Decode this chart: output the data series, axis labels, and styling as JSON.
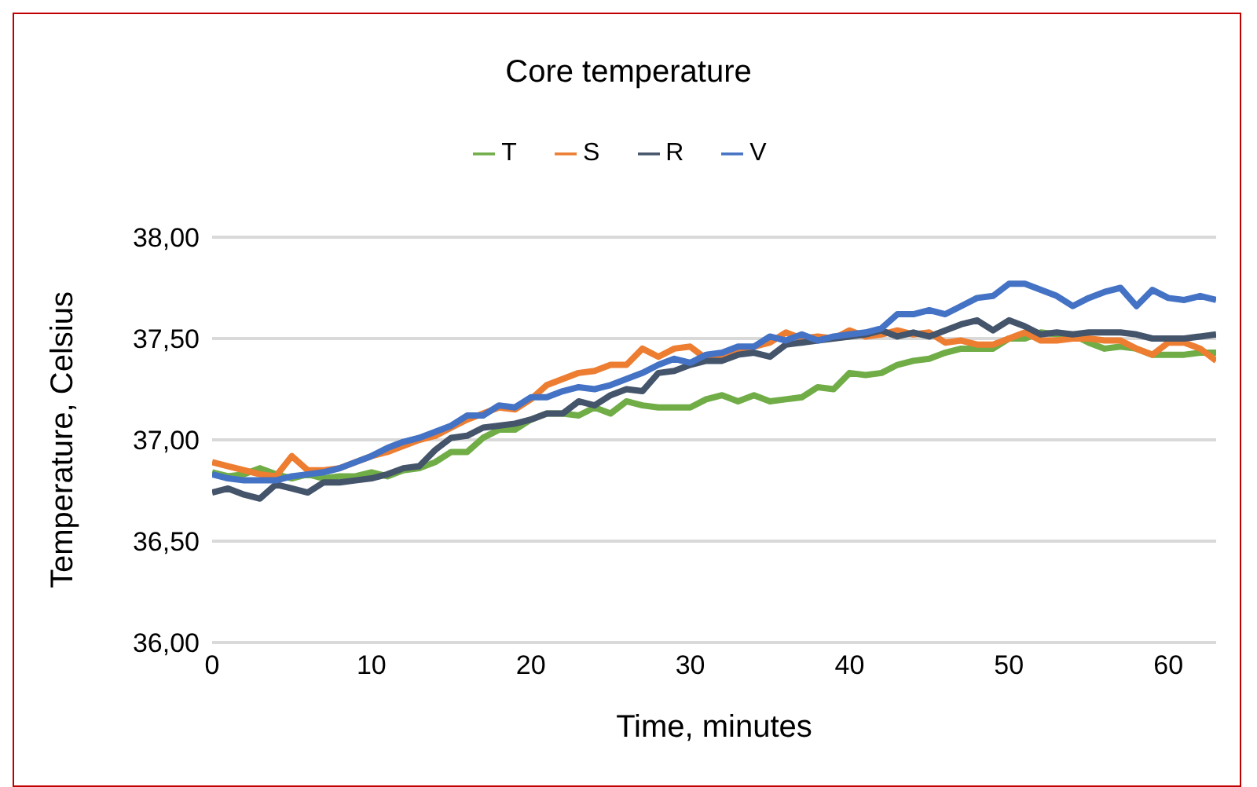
{
  "chart_data": {
    "type": "line",
    "title": "Core temperature",
    "xlabel": "Time, minutes",
    "ylabel": "Temperature, Celsius",
    "x": [
      0,
      1,
      2,
      3,
      4,
      5,
      6,
      7,
      8,
      9,
      10,
      11,
      12,
      13,
      14,
      15,
      16,
      17,
      18,
      19,
      20,
      21,
      22,
      23,
      24,
      25,
      26,
      27,
      28,
      29,
      30,
      31,
      32,
      33,
      34,
      35,
      36,
      37,
      38,
      39,
      40,
      41,
      42,
      43,
      44,
      45,
      46,
      47,
      48,
      49,
      50,
      51,
      52,
      53,
      54,
      55,
      56,
      57,
      58,
      59,
      60,
      61,
      62,
      63
    ],
    "series": [
      {
        "name": "T",
        "color": "#70ad47",
        "values": [
          36.84,
          36.82,
          36.83,
          36.86,
          36.83,
          36.81,
          36.83,
          36.81,
          36.82,
          36.82,
          36.84,
          36.82,
          36.85,
          36.86,
          36.89,
          36.94,
          36.94,
          37.01,
          37.05,
          37.05,
          37.1,
          37.13,
          37.13,
          37.12,
          37.16,
          37.13,
          37.19,
          37.17,
          37.16,
          37.16,
          37.16,
          37.2,
          37.22,
          37.19,
          37.22,
          37.19,
          37.2,
          37.21,
          37.26,
          37.25,
          37.33,
          37.32,
          37.33,
          37.37,
          37.39,
          37.4,
          37.43,
          37.45,
          37.45,
          37.45,
          37.5,
          37.5,
          37.53,
          37.52,
          37.52,
          37.48,
          37.45,
          37.46,
          37.45,
          37.42,
          37.42,
          37.42,
          37.43,
          37.43
        ]
      },
      {
        "name": "S",
        "color": "#ed7d31",
        "values": [
          36.89,
          36.87,
          36.85,
          36.83,
          36.82,
          36.92,
          36.85,
          36.85,
          36.86,
          36.89,
          36.92,
          36.94,
          36.97,
          37.0,
          37.02,
          37.06,
          37.1,
          37.13,
          37.16,
          37.15,
          37.2,
          37.27,
          37.3,
          37.33,
          37.34,
          37.37,
          37.37,
          37.45,
          37.41,
          37.45,
          37.46,
          37.4,
          37.42,
          37.44,
          37.46,
          37.48,
          37.53,
          37.5,
          37.51,
          37.5,
          37.54,
          37.51,
          37.52,
          37.54,
          37.52,
          37.53,
          37.48,
          37.49,
          37.47,
          37.47,
          37.5,
          37.53,
          37.49,
          37.49,
          37.5,
          37.5,
          37.49,
          37.49,
          37.45,
          37.42,
          37.48,
          37.48,
          37.45,
          37.39
        ]
      },
      {
        "name": "R",
        "color": "#44546a",
        "values": [
          36.74,
          36.76,
          36.73,
          36.71,
          36.78,
          36.76,
          36.74,
          36.79,
          36.79,
          36.8,
          36.81,
          36.83,
          36.86,
          36.87,
          36.95,
          37.01,
          37.02,
          37.06,
          37.07,
          37.08,
          37.1,
          37.13,
          37.13,
          37.19,
          37.17,
          37.22,
          37.25,
          37.24,
          37.33,
          37.34,
          37.37,
          37.39,
          37.39,
          37.42,
          37.43,
          37.41,
          37.47,
          37.48,
          37.49,
          37.5,
          37.51,
          37.52,
          37.54,
          37.51,
          37.53,
          37.51,
          37.54,
          37.57,
          37.59,
          37.54,
          37.59,
          37.56,
          37.52,
          37.53,
          37.52,
          37.53,
          37.53,
          37.53,
          37.52,
          37.5,
          37.5,
          37.5,
          37.51,
          37.52
        ]
      },
      {
        "name": "V",
        "color": "#4472c4",
        "values": [
          36.83,
          36.81,
          36.8,
          36.8,
          36.8,
          36.82,
          36.83,
          36.84,
          36.86,
          36.89,
          36.92,
          36.96,
          36.99,
          37.01,
          37.04,
          37.07,
          37.12,
          37.12,
          37.17,
          37.16,
          37.21,
          37.21,
          37.24,
          37.26,
          37.25,
          37.27,
          37.3,
          37.33,
          37.37,
          37.4,
          37.38,
          37.42,
          37.43,
          37.46,
          37.46,
          37.51,
          37.49,
          37.52,
          37.49,
          37.51,
          37.52,
          37.53,
          37.55,
          37.62,
          37.62,
          37.64,
          37.62,
          37.66,
          37.7,
          37.71,
          37.77,
          37.77,
          37.74,
          37.71,
          37.66,
          37.7,
          37.73,
          37.75,
          37.66,
          37.74,
          37.7,
          37.69,
          37.71,
          37.69
        ]
      }
    ],
    "xlim": [
      0,
      63
    ],
    "xticks": [
      0,
      10,
      20,
      30,
      40,
      50,
      60
    ],
    "ylim": [
      36,
      38
    ],
    "yticks": [
      {
        "value": 36,
        "label": "36,00"
      },
      {
        "value": 36.5,
        "label": "36,50"
      },
      {
        "value": 37,
        "label": "37,00"
      },
      {
        "value": 37.5,
        "label": "37,50"
      },
      {
        "value": 38,
        "label": "38,00"
      }
    ],
    "grid": "y",
    "legend": "top",
    "marker": "none",
    "line_style": "solid"
  }
}
